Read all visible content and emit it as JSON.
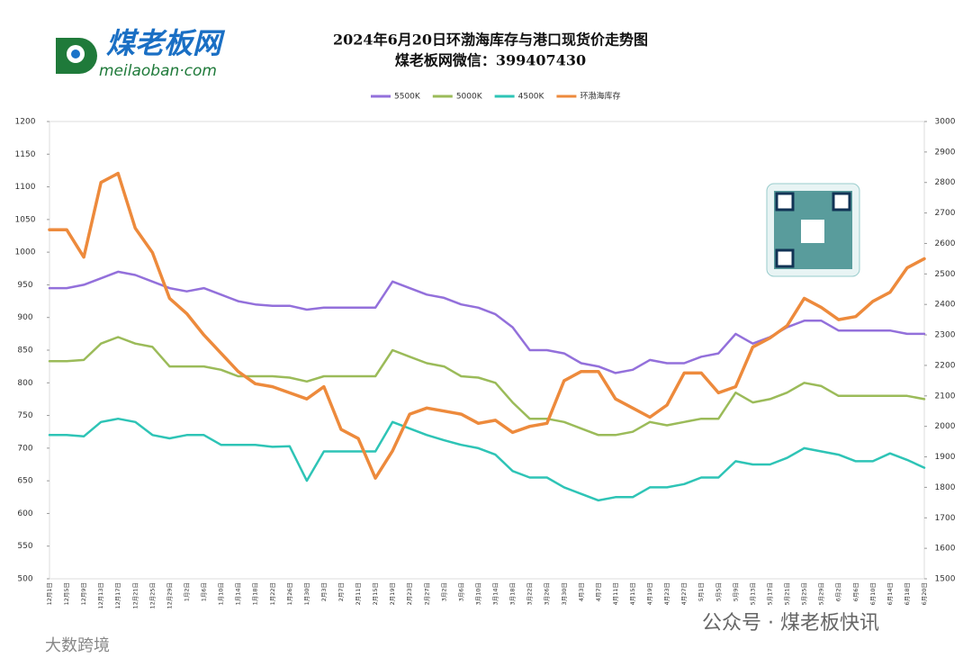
{
  "logo": {
    "name": "煤老板网",
    "site": "meilaoban·com"
  },
  "watermarks": [
    "公众号 · 煤老板快讯",
    "大数跨境"
  ],
  "chart_data": {
    "type": "line",
    "title": "2024年6月20日环渤海库存与港口现货价走势图",
    "subtitle": "煤老板网微信：399407430",
    "categories": [
      "12月1日",
      "12月5日",
      "12月9日",
      "12月13日",
      "12月17日",
      "12月21日",
      "12月25日",
      "12月29日",
      "1月2日",
      "1月6日",
      "1月10日",
      "1月14日",
      "1月18日",
      "1月22日",
      "1月26日",
      "1月30日",
      "2月3日",
      "2月7日",
      "2月11日",
      "2月15日",
      "2月19日",
      "2月23日",
      "2月27日",
      "3月2日",
      "3月6日",
      "3月10日",
      "3月14日",
      "3月18日",
      "3月22日",
      "3月26日",
      "3月30日",
      "4月3日",
      "4月7日",
      "4月11日",
      "4月15日",
      "4月19日",
      "4月23日",
      "4月27日",
      "5月1日",
      "5月5日",
      "5月9日",
      "5月13日",
      "5月17日",
      "5月21日",
      "5月25日",
      "5月29日",
      "6月2日",
      "6月6日",
      "6月10日",
      "6月14日",
      "6月18日",
      "6月20日"
    ],
    "series": [
      {
        "name": "5500K",
        "color": "#9370db",
        "axis": "y",
        "values": [
          945,
          945,
          950,
          960,
          970,
          965,
          955,
          945,
          940,
          945,
          935,
          925,
          920,
          918,
          918,
          912,
          915,
          915,
          915,
          915,
          955,
          945,
          935,
          930,
          920,
          915,
          905,
          885,
          850,
          850,
          845,
          830,
          825,
          815,
          820,
          835,
          830,
          830,
          840,
          845,
          875,
          860,
          870,
          885,
          895,
          895,
          880,
          880,
          880,
          880,
          875,
          875
        ]
      },
      {
        "name": "5000K",
        "color": "#9bbb59",
        "axis": "y",
        "values": [
          833,
          833,
          835,
          860,
          870,
          860,
          855,
          825,
          825,
          825,
          820,
          810,
          810,
          810,
          808,
          802,
          810,
          810,
          810,
          810,
          850,
          840,
          830,
          825,
          810,
          808,
          800,
          770,
          745,
          745,
          740,
          730,
          720,
          720,
          725,
          740,
          735,
          740,
          745,
          745,
          785,
          770,
          775,
          785,
          800,
          795,
          780,
          780,
          780,
          780,
          780,
          775
        ]
      },
      {
        "name": "4500K",
        "color": "#2ec4b6",
        "axis": "y",
        "values": [
          720,
          720,
          718,
          740,
          745,
          740,
          720,
          715,
          720,
          720,
          705,
          705,
          705,
          702,
          703,
          650,
          695,
          695,
          695,
          695,
          740,
          730,
          720,
          712,
          705,
          700,
          690,
          665,
          655,
          655,
          640,
          630,
          620,
          625,
          625,
          640,
          640,
          645,
          655,
          655,
          680,
          675,
          675,
          685,
          700,
          695,
          690,
          680,
          680,
          692,
          682,
          670
        ]
      },
      {
        "name": "环渤海库存",
        "color": "#ed8a3c",
        "axis": "y2",
        "values": [
          2645,
          2645,
          2555,
          2800,
          2830,
          2650,
          2570,
          2420,
          2370,
          2300,
          2240,
          2180,
          2140,
          2130,
          2110,
          2090,
          2130,
          1990,
          1960,
          1830,
          1920,
          2040,
          2060,
          2050,
          2040,
          2010,
          2020,
          1980,
          2000,
          2010,
          2150,
          2180,
          2180,
          2090,
          2060,
          2030,
          2070,
          2175,
          2175,
          2110,
          2130,
          2260,
          2290,
          2330,
          2420,
          2390,
          2350,
          2360,
          2410,
          2440,
          2520,
          2550
        ]
      }
    ],
    "ylim": [
      500,
      1200
    ],
    "yticks": [
      500,
      550,
      600,
      650,
      700,
      750,
      800,
      850,
      900,
      950,
      1000,
      1050,
      1100,
      1150,
      1200
    ],
    "y2lim": [
      1500,
      3000
    ],
    "y2ticks": [
      1500,
      1600,
      1700,
      1800,
      1900,
      2000,
      2100,
      2200,
      2300,
      2400,
      2500,
      2600,
      2700,
      2800,
      2900,
      3000
    ],
    "legend": "top"
  }
}
